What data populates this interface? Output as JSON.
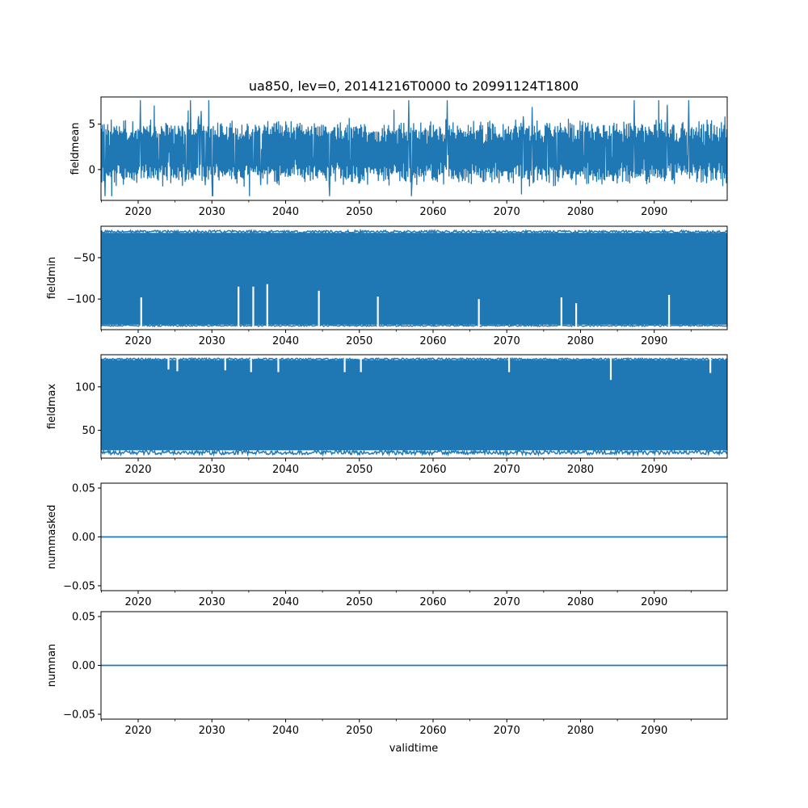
{
  "title": "ua850, lev=0, 20141216T0000 to 20991124T1800",
  "colors": {
    "series": "#1f77b4",
    "axes": "#000000",
    "background": "#ffffff"
  },
  "chart_data": {
    "type": "line",
    "title": "ua850, lev=0, 20141216T0000 to 20991124T1800",
    "xlabel": "validtime",
    "x_range": [
      "2014-12-16",
      "2099-11-24"
    ],
    "x_ticks": [
      "2020",
      "2030",
      "2040",
      "2050",
      "2060",
      "2070",
      "2080",
      "2090"
    ],
    "grid": false,
    "panels": [
      {
        "ylabel": "fieldmean",
        "ylim": [
          -3.4,
          8.0
        ],
        "yticks": [
          "0",
          "5"
        ],
        "series": {
          "style": "noisy-line",
          "typical_range": [
            -1.2,
            5.0
          ],
          "observed_min": -2.9,
          "observed_max": 7.6,
          "extremes": [
            {
              "x": "2022.2",
              "y": 7.0
            },
            {
              "x": "2030.1",
              "y": -2.9
            },
            {
              "x": "2072.0",
              "y": -2.7
            },
            {
              "x": "2090.6",
              "y": 7.6
            }
          ]
        }
      },
      {
        "ylabel": "fieldmin",
        "ylim": [
          -137,
          -12
        ],
        "yticks": [
          "−100",
          "−50"
        ],
        "series": {
          "style": "dense-band",
          "band_low": -131,
          "band_high": -20,
          "observed_min": -133,
          "observed_max": -17,
          "spikes": [
            {
              "x": "2020.4",
              "y": -98
            },
            {
              "x": "2033.6",
              "y": -85
            },
            {
              "x": "2035.6",
              "y": -85
            },
            {
              "x": "2037.5",
              "y": -82
            },
            {
              "x": "2044.5",
              "y": -90
            },
            {
              "x": "2052.5",
              "y": -97
            },
            {
              "x": "2066.2",
              "y": -100
            },
            {
              "x": "2077.4",
              "y": -98
            },
            {
              "x": "2079.4",
              "y": -105
            },
            {
              "x": "2092.0",
              "y": -95
            }
          ]
        }
      },
      {
        "ylabel": "fieldmax",
        "ylim": [
          18,
          137
        ],
        "yticks": [
          "50",
          "100"
        ],
        "series": {
          "style": "dense-band",
          "band_low": 27,
          "band_high": 131,
          "observed_min": 22,
          "observed_max": 133,
          "spikes": [
            {
              "x": "2024.1",
              "y": 120
            },
            {
              "x": "2025.3",
              "y": 118
            },
            {
              "x": "2031.8",
              "y": 119
            },
            {
              "x": "2035.3",
              "y": 117
            },
            {
              "x": "2039.0",
              "y": 117
            },
            {
              "x": "2048.0",
              "y": 117
            },
            {
              "x": "2050.2",
              "y": 117
            },
            {
              "x": "2070.3",
              "y": 117
            },
            {
              "x": "2084.1",
              "y": 108
            },
            {
              "x": "2097.6",
              "y": 116
            }
          ]
        }
      },
      {
        "ylabel": "nummasked",
        "ylim": [
          -0.055,
          0.055
        ],
        "yticks": [
          "−0.05",
          "0.00",
          "0.05"
        ],
        "series": {
          "style": "constant",
          "value": 0.0
        }
      },
      {
        "ylabel": "numnan",
        "ylim": [
          -0.055,
          0.055
        ],
        "yticks": [
          "−0.05",
          "0.00",
          "0.05"
        ],
        "series": {
          "style": "constant",
          "value": 0.0
        }
      }
    ]
  }
}
